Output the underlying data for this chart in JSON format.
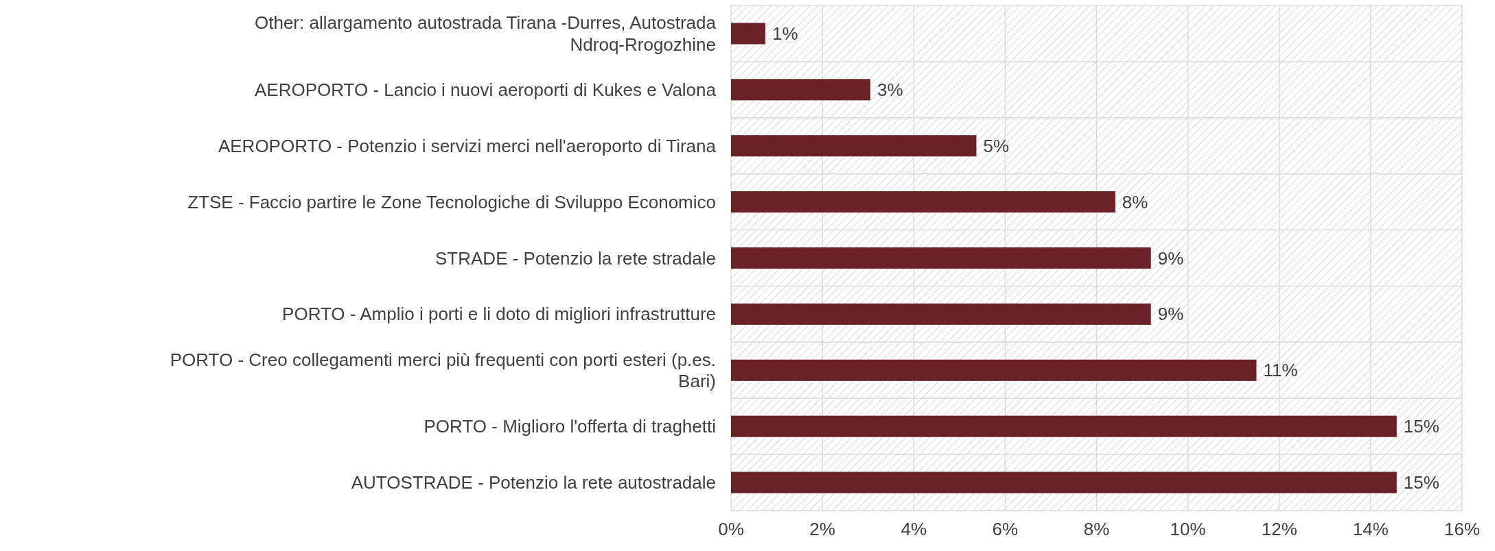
{
  "chart_data": {
    "type": "bar",
    "orientation": "horizontal",
    "categories": [
      "Other: allargamento autostrada Tirana -Durres, Autostrada Ndroq-Rrogozhine",
      "AEROPORTO - Lancio i nuovi aeroporti di Kukes e Valona",
      "AEROPORTO - Potenzio i servizi merci nell'aeroporto di Tirana",
      "ZTSE - Faccio partire le Zone Tecnologiche di Sviluppo Economico",
      "STRADE - Potenzio la rete stradale",
      "PORTO - Amplio i porti e li doto di migliori infrastrutture",
      "PORTO - Creo collegamenti merci più frequenti con porti esteri (p.es. Bari)",
      "PORTO - Miglioro l'offerta di traghetti",
      "AUTOSTRADE - Potenzio la rete autostradale"
    ],
    "values": [
      0.75,
      3.05,
      5.37,
      8.41,
      9.19,
      9.19,
      11.5,
      14.57,
      14.57
    ],
    "value_labels": [
      "1%",
      "3%",
      "5%",
      "8%",
      "9%",
      "9%",
      "11%",
      "15%",
      "15%"
    ],
    "color": "#6b2226",
    "xlim": [
      0,
      16
    ],
    "xticks": [
      {
        "value": 0,
        "label": "0%"
      },
      {
        "value": 2,
        "label": "2%"
      },
      {
        "value": 4,
        "label": "4%"
      },
      {
        "value": 6,
        "label": "6%"
      },
      {
        "value": 8,
        "label": "8%"
      },
      {
        "value": 10,
        "label": "10%"
      },
      {
        "value": 12,
        "label": "12%"
      },
      {
        "value": 14,
        "label": "14%"
      },
      {
        "value": 16,
        "label": "16%"
      }
    ],
    "grid": true
  }
}
